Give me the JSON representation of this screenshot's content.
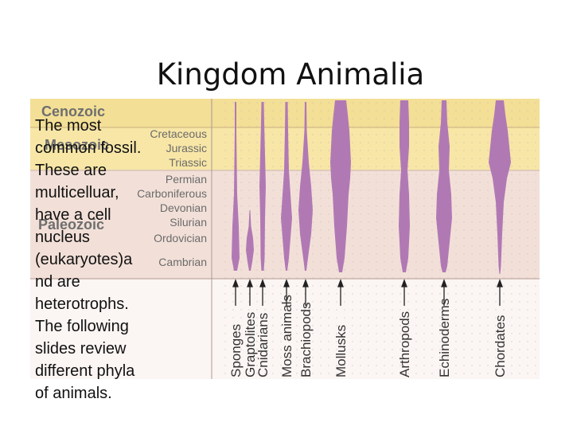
{
  "slide": {
    "title": "Kingdom Animalia",
    "body_lines": [
      "The most",
      "common fossil.",
      "These are",
      "multicelluar,",
      "have a cell",
      "nucleus",
      "(eukaryotes)a",
      "nd are",
      "heterotrophs.",
      "The following",
      "slides review",
      "different phyla",
      "of animals."
    ]
  },
  "diagram": {
    "eras": [
      {
        "name": "Cenozoic",
        "periods": []
      },
      {
        "name": "Mesozoic",
        "periods": [
          "Cretaceous",
          "Jurassic",
          "Triassic"
        ]
      },
      {
        "name": "Paleozoic",
        "periods": [
          "Permian",
          "Carboniferous",
          "Devonian",
          "Silurian",
          "Ordovician",
          "Cambrian"
        ]
      }
    ],
    "phyla": [
      "Sponges",
      "Graptolites",
      "Cnidarians",
      "Moss animals",
      "Brachiopods",
      "Mollusks",
      "Arthropods",
      "Echinoderms",
      "Chordates"
    ],
    "colors": {
      "cenozoic": "#f3df96",
      "mesozoic": "#f7e6a6",
      "paleozoic": "#f2e0d8",
      "bottom": "#fbf5f3",
      "shape": "#b179b4",
      "era_text": "#6e6e6e",
      "period_text": "#6b6b6b"
    }
  }
}
